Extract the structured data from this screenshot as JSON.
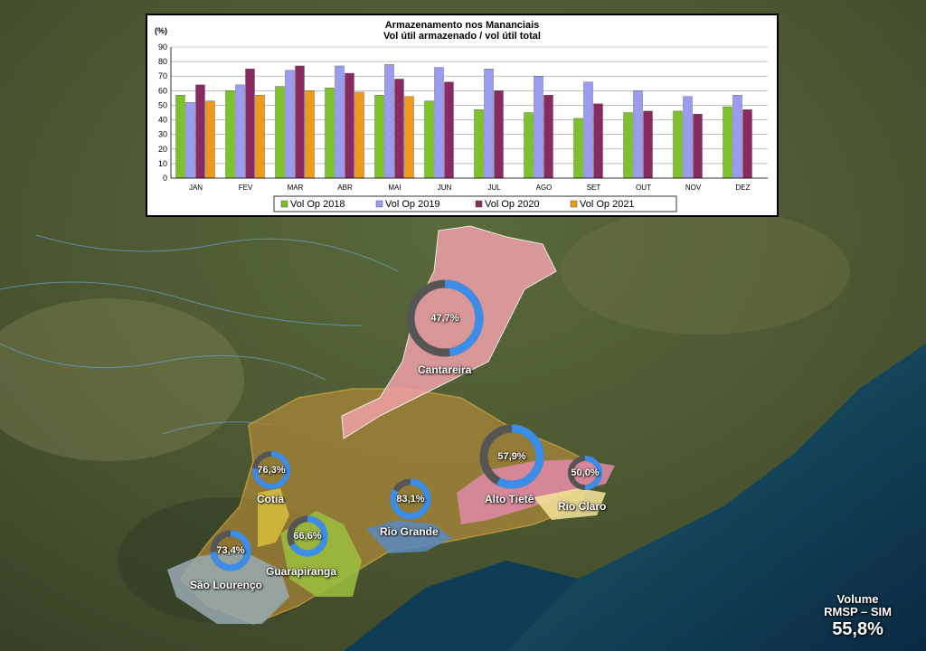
{
  "colors": {
    "s2018": "#7cc22b",
    "s2019": "#9a9cf0",
    "s2020": "#8a2a62",
    "s2021": "#f09a1a",
    "ring_fill": "#3b8de8",
    "ring_track": "#555555"
  },
  "chart_data": {
    "type": "bar",
    "title": "Armazenamento nos Mananciais",
    "subtitle": "Vol útil armazenado / vol útil total",
    "ylabel": "(%)",
    "ylim": [
      0,
      90
    ],
    "yticks": [
      0,
      10,
      20,
      30,
      40,
      50,
      60,
      70,
      80,
      90
    ],
    "grid": true,
    "legend": "bottom",
    "categories": [
      "JAN",
      "FEV",
      "MAR",
      "ABR",
      "MAI",
      "JUN",
      "JUL",
      "AGO",
      "SET",
      "OUT",
      "NOV",
      "DEZ"
    ],
    "series": [
      {
        "name": "Vol Op 2018",
        "color_key": "s2018",
        "values": [
          57,
          60,
          63,
          62,
          57,
          53,
          47,
          45,
          41,
          45,
          46,
          49
        ]
      },
      {
        "name": "Vol Op 2019",
        "color_key": "s2019",
        "values": [
          52,
          64,
          74,
          77,
          78,
          76,
          75,
          70,
          66,
          60,
          56,
          57
        ]
      },
      {
        "name": "Vol Op 2020",
        "color_key": "s2020",
        "values": [
          64,
          75,
          77,
          72,
          68,
          66,
          60,
          57,
          51,
          46,
          44,
          47
        ]
      },
      {
        "name": "Vol Op 2021",
        "color_key": "s2021",
        "values": [
          53,
          57,
          60,
          59,
          56,
          null,
          null,
          null,
          null,
          null,
          null,
          null
        ]
      }
    ]
  },
  "reservoirs": [
    {
      "name": "Cantareira",
      "pct_label": "47,7%",
      "value": 47.7
    },
    {
      "name": "Cotia",
      "pct_label": "76,3%",
      "value": 76.3
    },
    {
      "name": "São Lourenço",
      "pct_label": "73,4%",
      "value": 73.4
    },
    {
      "name": "Guarapiranga",
      "pct_label": "66,6%",
      "value": 66.6
    },
    {
      "name": "Rio Grande",
      "pct_label": "83,1%",
      "value": 83.1
    },
    {
      "name": "Alto Tietê",
      "pct_label": "57,9%",
      "value": 57.9
    },
    {
      "name": "Rio Claro",
      "pct_label": "50,0%",
      "value": 50.0
    }
  ],
  "total": {
    "line1": "Volume",
    "line2": "RMSP – SIM",
    "value": "55,8%"
  }
}
